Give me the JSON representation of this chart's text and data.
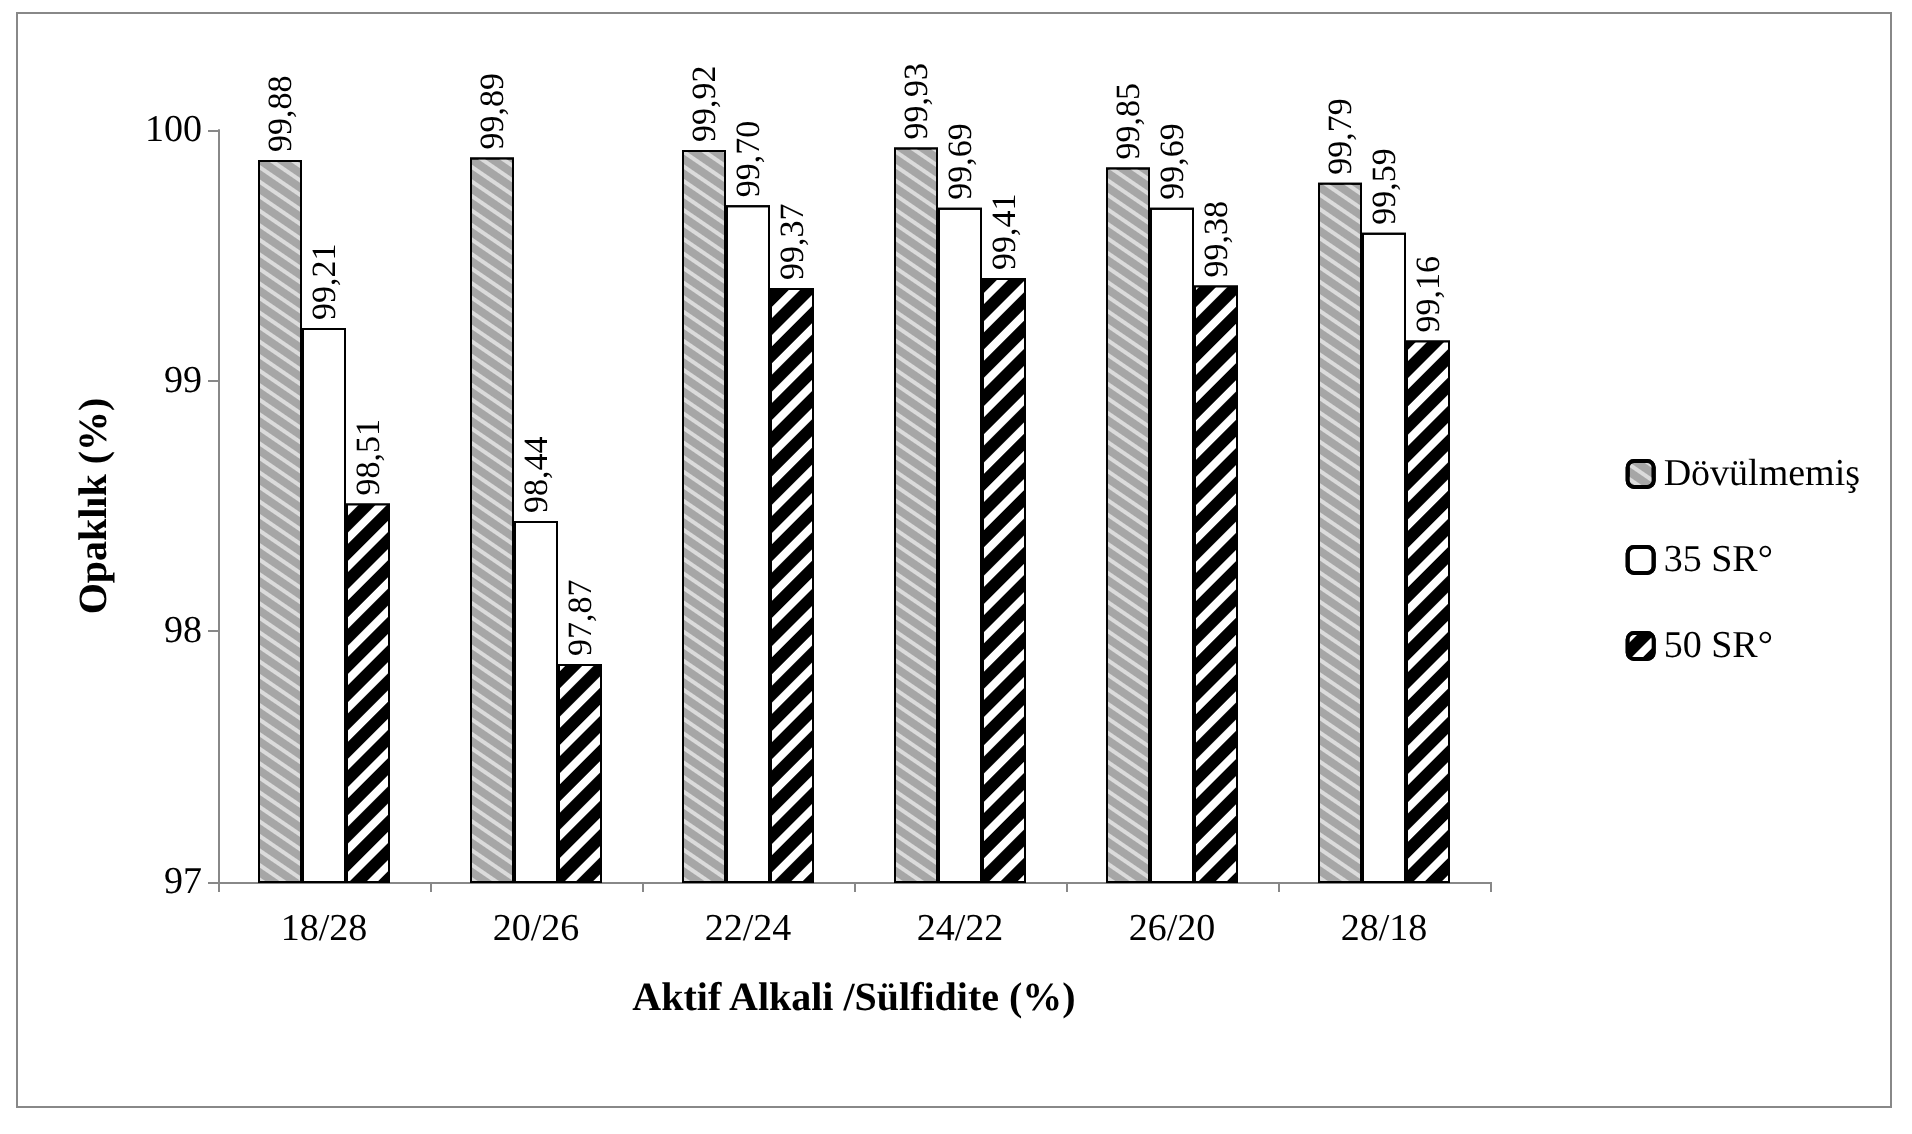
{
  "chart_data": {
    "type": "bar",
    "xlabel": "Aktif Alkali /Sülfidite (%)",
    "ylabel": "Opaklık (%)",
    "categories": [
      "18/28",
      "20/26",
      "22/24",
      "24/22",
      "26/20",
      "28/18"
    ],
    "series": [
      {
        "name": "Dövülmemiş",
        "color": "#a6a6a6",
        "values": [
          99.88,
          99.89,
          99.92,
          99.93,
          99.85,
          99.79
        ],
        "value_labels": [
          "99,88",
          "99,89",
          "99,92",
          "99,93",
          "99,85",
          "99,79"
        ]
      },
      {
        "name": "35 SR°",
        "color": "#ffffff",
        "values": [
          99.21,
          98.44,
          99.7,
          99.69,
          99.69,
          99.59
        ],
        "value_labels": [
          "99,21",
          "98,44",
          "99,70",
          "99,69",
          "99,69",
          "99,59"
        ]
      },
      {
        "name": "50 SR°",
        "color": "#000000",
        "values": [
          98.51,
          97.87,
          99.37,
          99.41,
          99.38,
          99.16
        ],
        "value_labels": [
          "98,51",
          "97,87",
          "99,37",
          "99,41",
          "99,38",
          "99,16"
        ]
      }
    ],
    "ylim": [
      97,
      100
    ],
    "yticks": [
      97,
      98,
      99,
      100
    ],
    "grid": false,
    "legend": "right"
  }
}
